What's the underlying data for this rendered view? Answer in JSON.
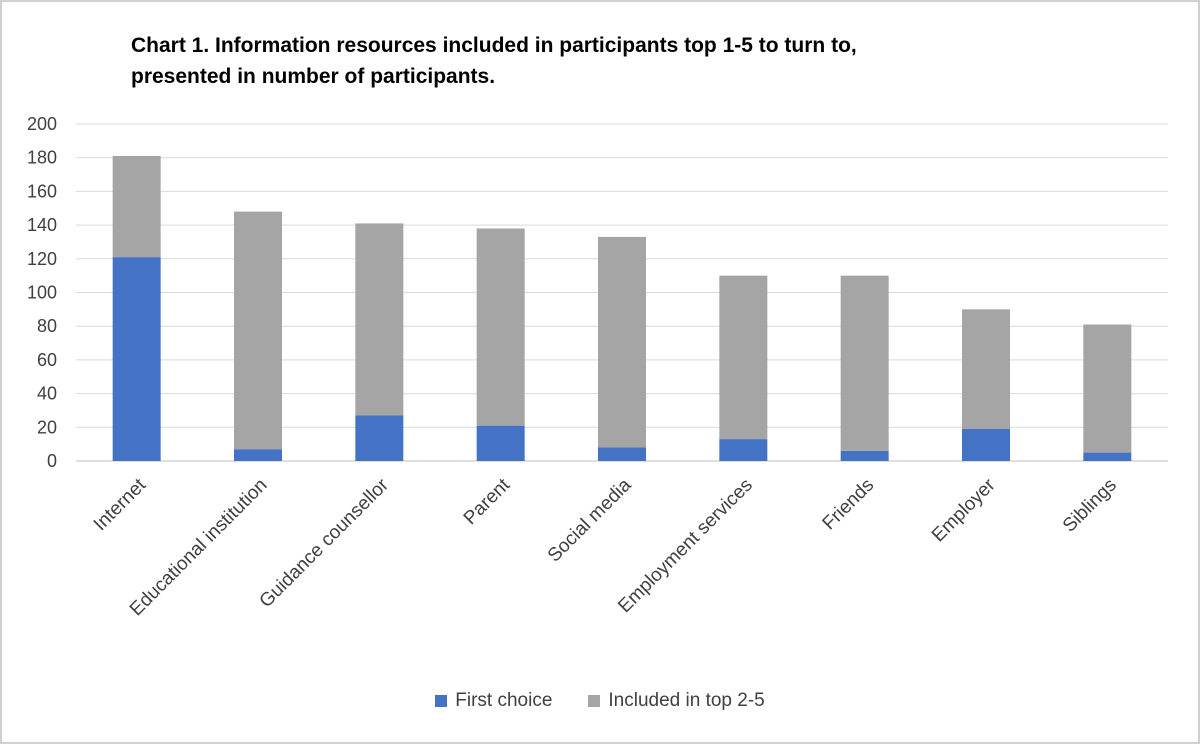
{
  "chart_data": {
    "type": "bar",
    "stacked": true,
    "title_line1": "Chart 1. Information  resources included  in participants  top 1-5 to turn to,",
    "title_line2": "presented in  number of participants.",
    "xlabel": "",
    "ylabel": "",
    "ylim": [
      0,
      200
    ],
    "yticks": [
      0,
      20,
      40,
      60,
      80,
      100,
      120,
      140,
      160,
      180,
      200
    ],
    "grid": true,
    "legend_position": "bottom",
    "categories": [
      "Internet",
      "Educational institution",
      "Guidance counsellor",
      "Parent",
      "Social media",
      "Employment services",
      "Friends",
      "Employer",
      "Siblings"
    ],
    "series": [
      {
        "name": "First choice",
        "color": "#4472C4",
        "values": [
          121,
          7,
          27,
          21,
          8,
          13,
          6,
          19,
          5
        ]
      },
      {
        "name": "Included in top 2-5",
        "color": "#A5A5A5",
        "values": [
          60,
          141,
          114,
          117,
          125,
          97,
          104,
          71,
          76
        ]
      }
    ]
  }
}
